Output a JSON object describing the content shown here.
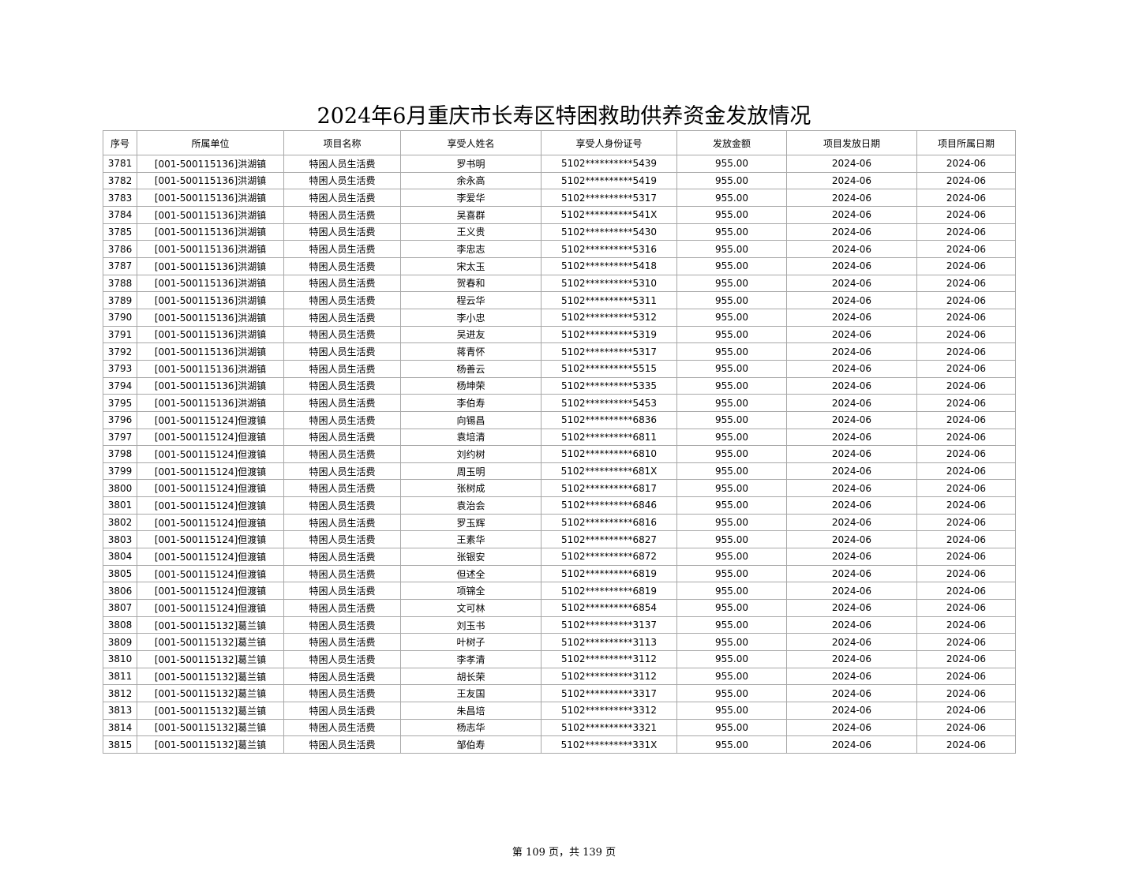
{
  "title": "2024年6月重庆市长寿区特困救助供养资金发放情况",
  "columns": [
    "序号",
    "所属单位",
    "项目名称",
    "享受人姓名",
    "享受人身份证号",
    "发放金额",
    "项目发放日期",
    "项目所属日期"
  ],
  "rows": [
    [
      "3781",
      "[001-500115136]洪湖镇",
      "特困人员生活费",
      "罗书明",
      "5102**********5439",
      "955.00",
      "2024-06",
      "2024-06"
    ],
    [
      "3782",
      "[001-500115136]洪湖镇",
      "特困人员生活费",
      "余永高",
      "5102**********5419",
      "955.00",
      "2024-06",
      "2024-06"
    ],
    [
      "3783",
      "[001-500115136]洪湖镇",
      "特困人员生活费",
      "李爱华",
      "5102**********5317",
      "955.00",
      "2024-06",
      "2024-06"
    ],
    [
      "3784",
      "[001-500115136]洪湖镇",
      "特困人员生活费",
      "吴喜群",
      "5102**********541X",
      "955.00",
      "2024-06",
      "2024-06"
    ],
    [
      "3785",
      "[001-500115136]洪湖镇",
      "特困人员生活费",
      "王义贵",
      "5102**********5430",
      "955.00",
      "2024-06",
      "2024-06"
    ],
    [
      "3786",
      "[001-500115136]洪湖镇",
      "特困人员生活费",
      "李忠志",
      "5102**********5316",
      "955.00",
      "2024-06",
      "2024-06"
    ],
    [
      "3787",
      "[001-500115136]洪湖镇",
      "特困人员生活费",
      "宋太玉",
      "5102**********5418",
      "955.00",
      "2024-06",
      "2024-06"
    ],
    [
      "3788",
      "[001-500115136]洪湖镇",
      "特困人员生活费",
      "贺春和",
      "5102**********5310",
      "955.00",
      "2024-06",
      "2024-06"
    ],
    [
      "3789",
      "[001-500115136]洪湖镇",
      "特困人员生活费",
      "程云华",
      "5102**********5311",
      "955.00",
      "2024-06",
      "2024-06"
    ],
    [
      "3790",
      "[001-500115136]洪湖镇",
      "特困人员生活费",
      "李小忠",
      "5102**********5312",
      "955.00",
      "2024-06",
      "2024-06"
    ],
    [
      "3791",
      "[001-500115136]洪湖镇",
      "特困人员生活费",
      "吴进友",
      "5102**********5319",
      "955.00",
      "2024-06",
      "2024-06"
    ],
    [
      "3792",
      "[001-500115136]洪湖镇",
      "特困人员生活费",
      "蒋青怀",
      "5102**********5317",
      "955.00",
      "2024-06",
      "2024-06"
    ],
    [
      "3793",
      "[001-500115136]洪湖镇",
      "特困人员生活费",
      "杨善云",
      "5102**********5515",
      "955.00",
      "2024-06",
      "2024-06"
    ],
    [
      "3794",
      "[001-500115136]洪湖镇",
      "特困人员生活费",
      "杨坤荣",
      "5102**********5335",
      "955.00",
      "2024-06",
      "2024-06"
    ],
    [
      "3795",
      "[001-500115136]洪湖镇",
      "特困人员生活费",
      "李伯寿",
      "5102**********5453",
      "955.00",
      "2024-06",
      "2024-06"
    ],
    [
      "3796",
      "[001-500115124]但渡镇",
      "特困人员生活费",
      "向锡昌",
      "5102**********6836",
      "955.00",
      "2024-06",
      "2024-06"
    ],
    [
      "3797",
      "[001-500115124]但渡镇",
      "特困人员生活费",
      "袁培清",
      "5102**********6811",
      "955.00",
      "2024-06",
      "2024-06"
    ],
    [
      "3798",
      "[001-500115124]但渡镇",
      "特困人员生活费",
      "刘约树",
      "5102**********6810",
      "955.00",
      "2024-06",
      "2024-06"
    ],
    [
      "3799",
      "[001-500115124]但渡镇",
      "特困人员生活费",
      "周玉明",
      "5102**********681X",
      "955.00",
      "2024-06",
      "2024-06"
    ],
    [
      "3800",
      "[001-500115124]但渡镇",
      "特困人员生活费",
      "张树成",
      "5102**********6817",
      "955.00",
      "2024-06",
      "2024-06"
    ],
    [
      "3801",
      "[001-500115124]但渡镇",
      "特困人员生活费",
      "袁治会",
      "5102**********6846",
      "955.00",
      "2024-06",
      "2024-06"
    ],
    [
      "3802",
      "[001-500115124]但渡镇",
      "特困人员生活费",
      "罗玉辉",
      "5102**********6816",
      "955.00",
      "2024-06",
      "2024-06"
    ],
    [
      "3803",
      "[001-500115124]但渡镇",
      "特困人员生活费",
      "王素华",
      "5102**********6827",
      "955.00",
      "2024-06",
      "2024-06"
    ],
    [
      "3804",
      "[001-500115124]但渡镇",
      "特困人员生活费",
      "张银安",
      "5102**********6872",
      "955.00",
      "2024-06",
      "2024-06"
    ],
    [
      "3805",
      "[001-500115124]但渡镇",
      "特困人员生活费",
      "但述全",
      "5102**********6819",
      "955.00",
      "2024-06",
      "2024-06"
    ],
    [
      "3806",
      "[001-500115124]但渡镇",
      "特困人员生活费",
      "项锦全",
      "5102**********6819",
      "955.00",
      "2024-06",
      "2024-06"
    ],
    [
      "3807",
      "[001-500115124]但渡镇",
      "特困人员生活费",
      "文可林",
      "5102**********6854",
      "955.00",
      "2024-06",
      "2024-06"
    ],
    [
      "3808",
      "[001-500115132]葛兰镇",
      "特困人员生活费",
      "刘玉书",
      "5102**********3137",
      "955.00",
      "2024-06",
      "2024-06"
    ],
    [
      "3809",
      "[001-500115132]葛兰镇",
      "特困人员生活费",
      "叶树子",
      "5102**********3113",
      "955.00",
      "2024-06",
      "2024-06"
    ],
    [
      "3810",
      "[001-500115132]葛兰镇",
      "特困人员生活费",
      "李孝清",
      "5102**********3112",
      "955.00",
      "2024-06",
      "2024-06"
    ],
    [
      "3811",
      "[001-500115132]葛兰镇",
      "特困人员生活费",
      "胡长荣",
      "5102**********3112",
      "955.00",
      "2024-06",
      "2024-06"
    ],
    [
      "3812",
      "[001-500115132]葛兰镇",
      "特困人员生活费",
      "王友国",
      "5102**********3317",
      "955.00",
      "2024-06",
      "2024-06"
    ],
    [
      "3813",
      "[001-500115132]葛兰镇",
      "特困人员生活费",
      "朱昌培",
      "5102**********3312",
      "955.00",
      "2024-06",
      "2024-06"
    ],
    [
      "3814",
      "[001-500115132]葛兰镇",
      "特困人员生活费",
      "杨志华",
      "5102**********3321",
      "955.00",
      "2024-06",
      "2024-06"
    ],
    [
      "3815",
      "[001-500115132]葛兰镇",
      "特困人员生活费",
      "邹伯寿",
      "5102**********331X",
      "955.00",
      "2024-06",
      "2024-06"
    ]
  ],
  "footer": "第 109 页，共 139 页"
}
